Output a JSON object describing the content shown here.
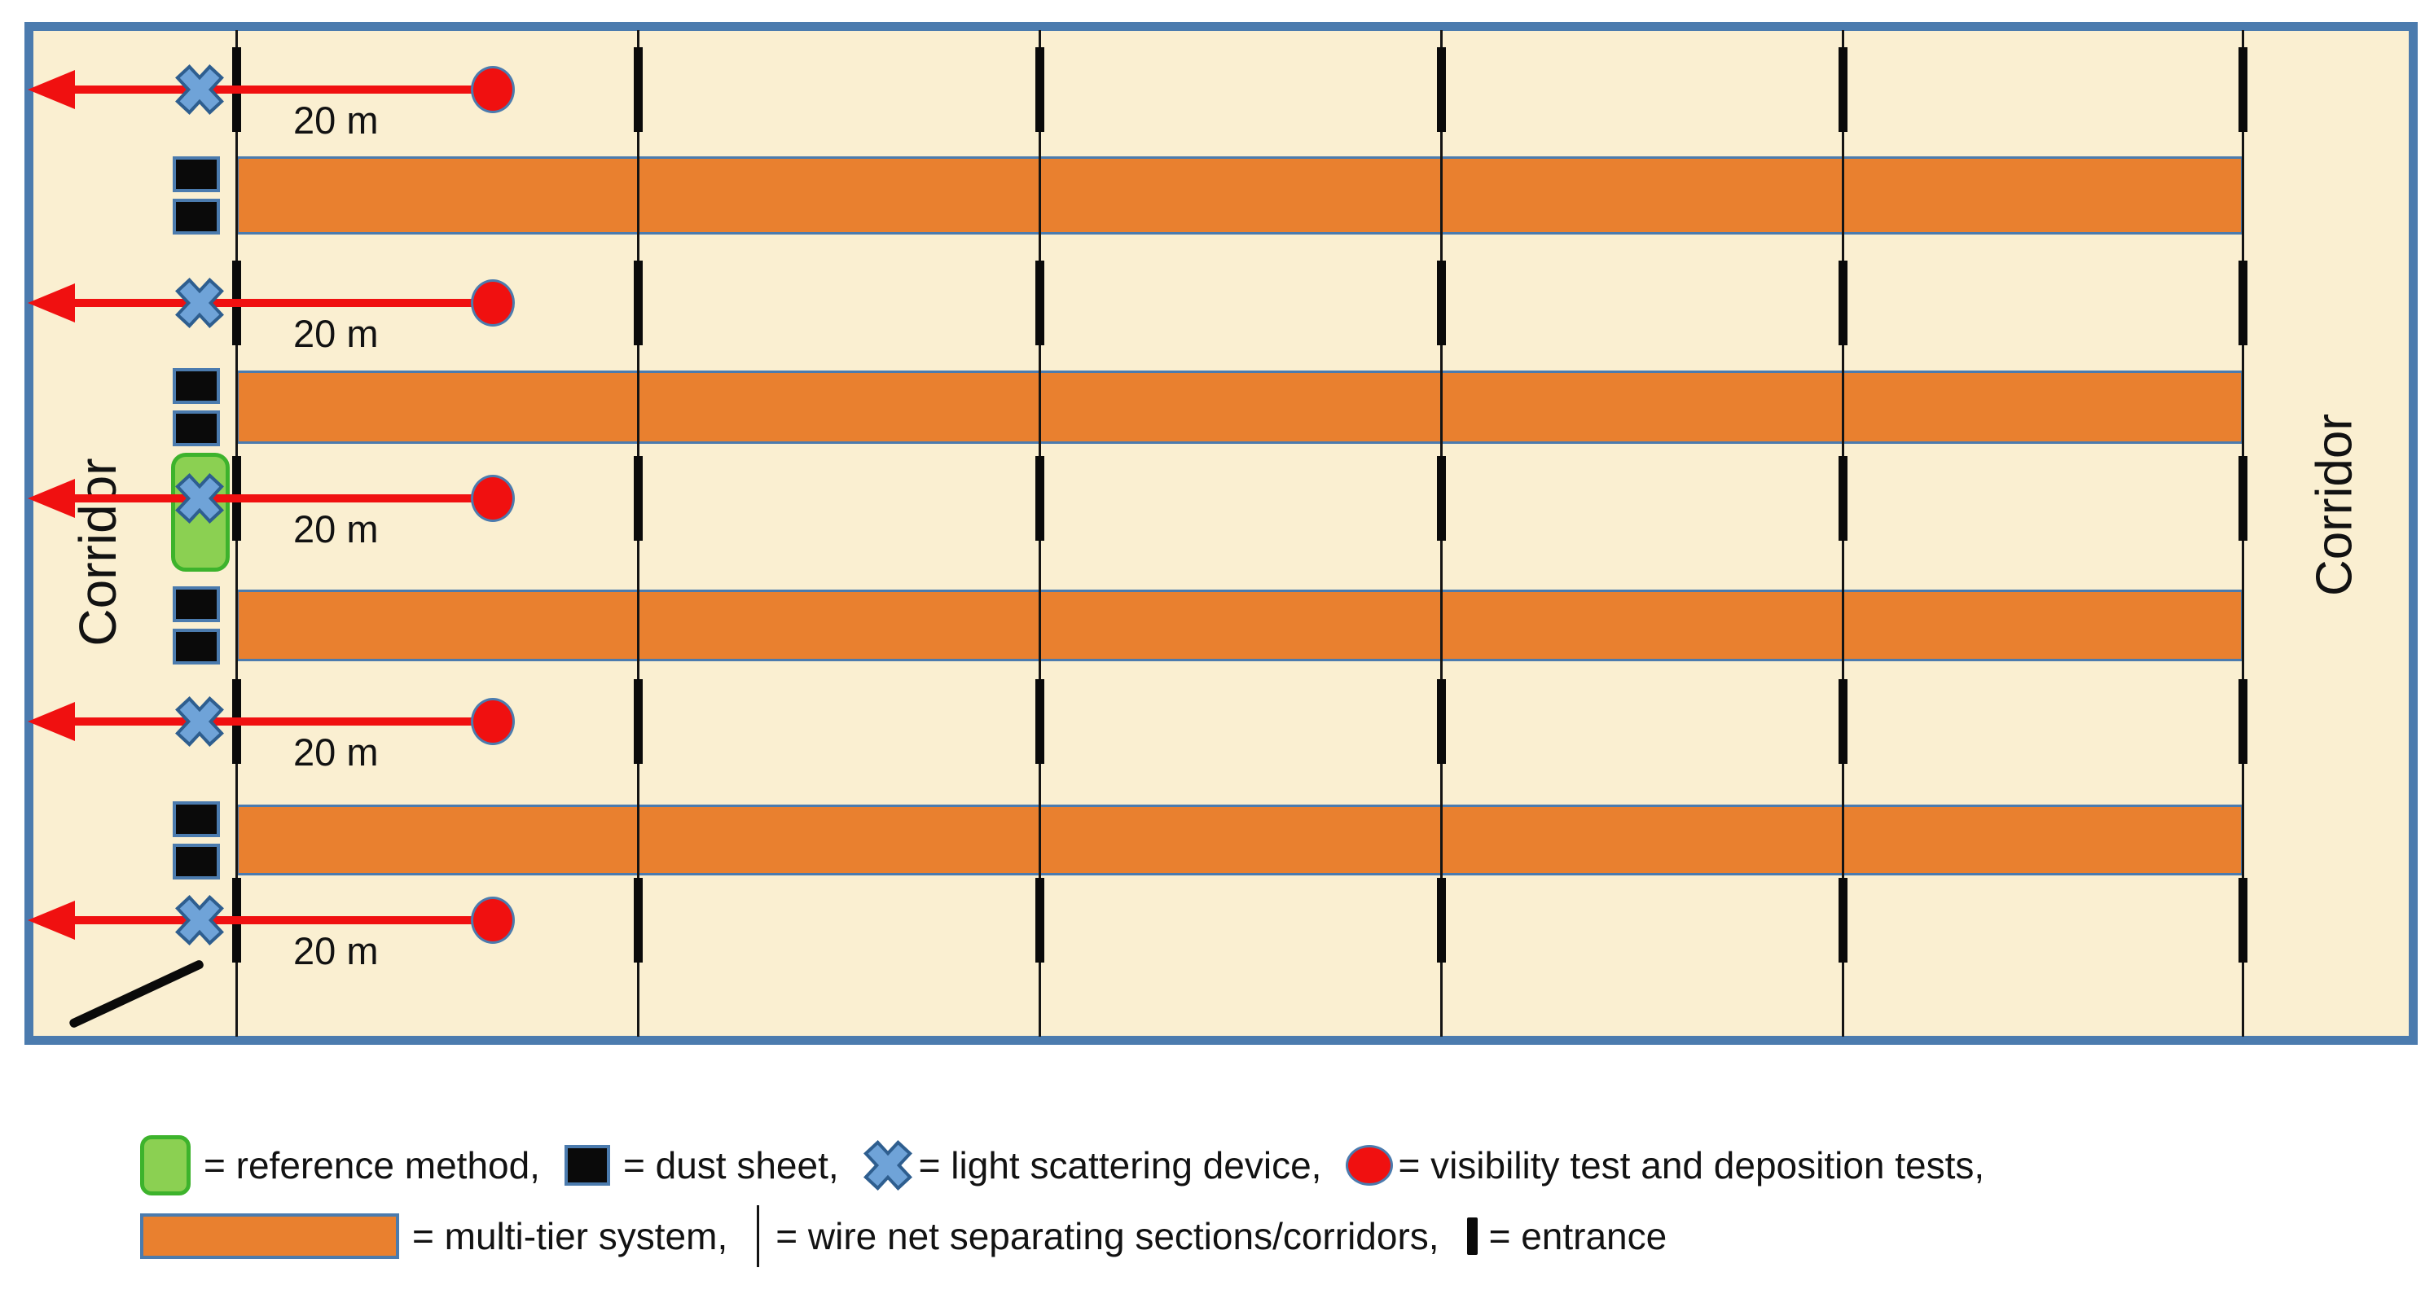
{
  "diagram": {
    "corridor_left_label": "Corridor",
    "corridor_right_label": "Corridor",
    "distance_label": "20 m"
  },
  "legend": {
    "items": [
      {
        "icon": "reference-method-swatch",
        "label": "= reference method,"
      },
      {
        "icon": "dust-sheet-swatch",
        "label": "= dust sheet,"
      },
      {
        "icon": "light-scattering-device-swatch",
        "label": "= light scattering device,"
      },
      {
        "icon": "visibility-test-swatch",
        "label": "= visibility test and deposition tests,"
      },
      {
        "icon": "multi-tier-system-swatch",
        "label": "= multi-tier system,"
      },
      {
        "icon": "wire-net-swatch",
        "label": "= wire net separating sections/corridors,"
      },
      {
        "icon": "entrance-swatch",
        "label": "= entrance"
      }
    ]
  },
  "colors": {
    "floor_cream": "#FAEFD1",
    "outline_blue": "#4B7BAE",
    "tier_orange": "#E9802F",
    "device_blue": "#6FA3D8",
    "device_blue_edge": "#2E5E8F",
    "reference_green": "#8BD052",
    "reference_green_edge": "#3DB32C",
    "marker_red": "#F01010",
    "text_ink": "#121212"
  }
}
